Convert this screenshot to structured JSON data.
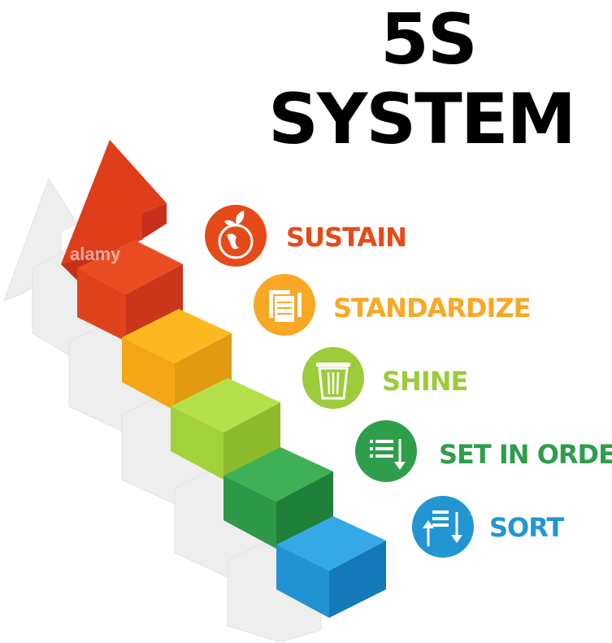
{
  "title": {
    "line1": "5S",
    "line2": "SYSTEM"
  },
  "steps": [
    {
      "label": "SUSTAIN",
      "color": "#e64a19",
      "icon": "globe-leaf-icon"
    },
    {
      "label": "STANDARDIZE",
      "color": "#f9a825",
      "icon": "documents-icon"
    },
    {
      "label": "SHINE",
      "color": "#9ccc3a",
      "icon": "trash-bin-icon"
    },
    {
      "label": "SET IN ORDER",
      "color": "#2e9e4a",
      "icon": "list-arrow-down-icon"
    },
    {
      "label": "SORT",
      "color": "#2196d3",
      "icon": "sort-arrows-icon"
    }
  ],
  "watermark": "alamy"
}
